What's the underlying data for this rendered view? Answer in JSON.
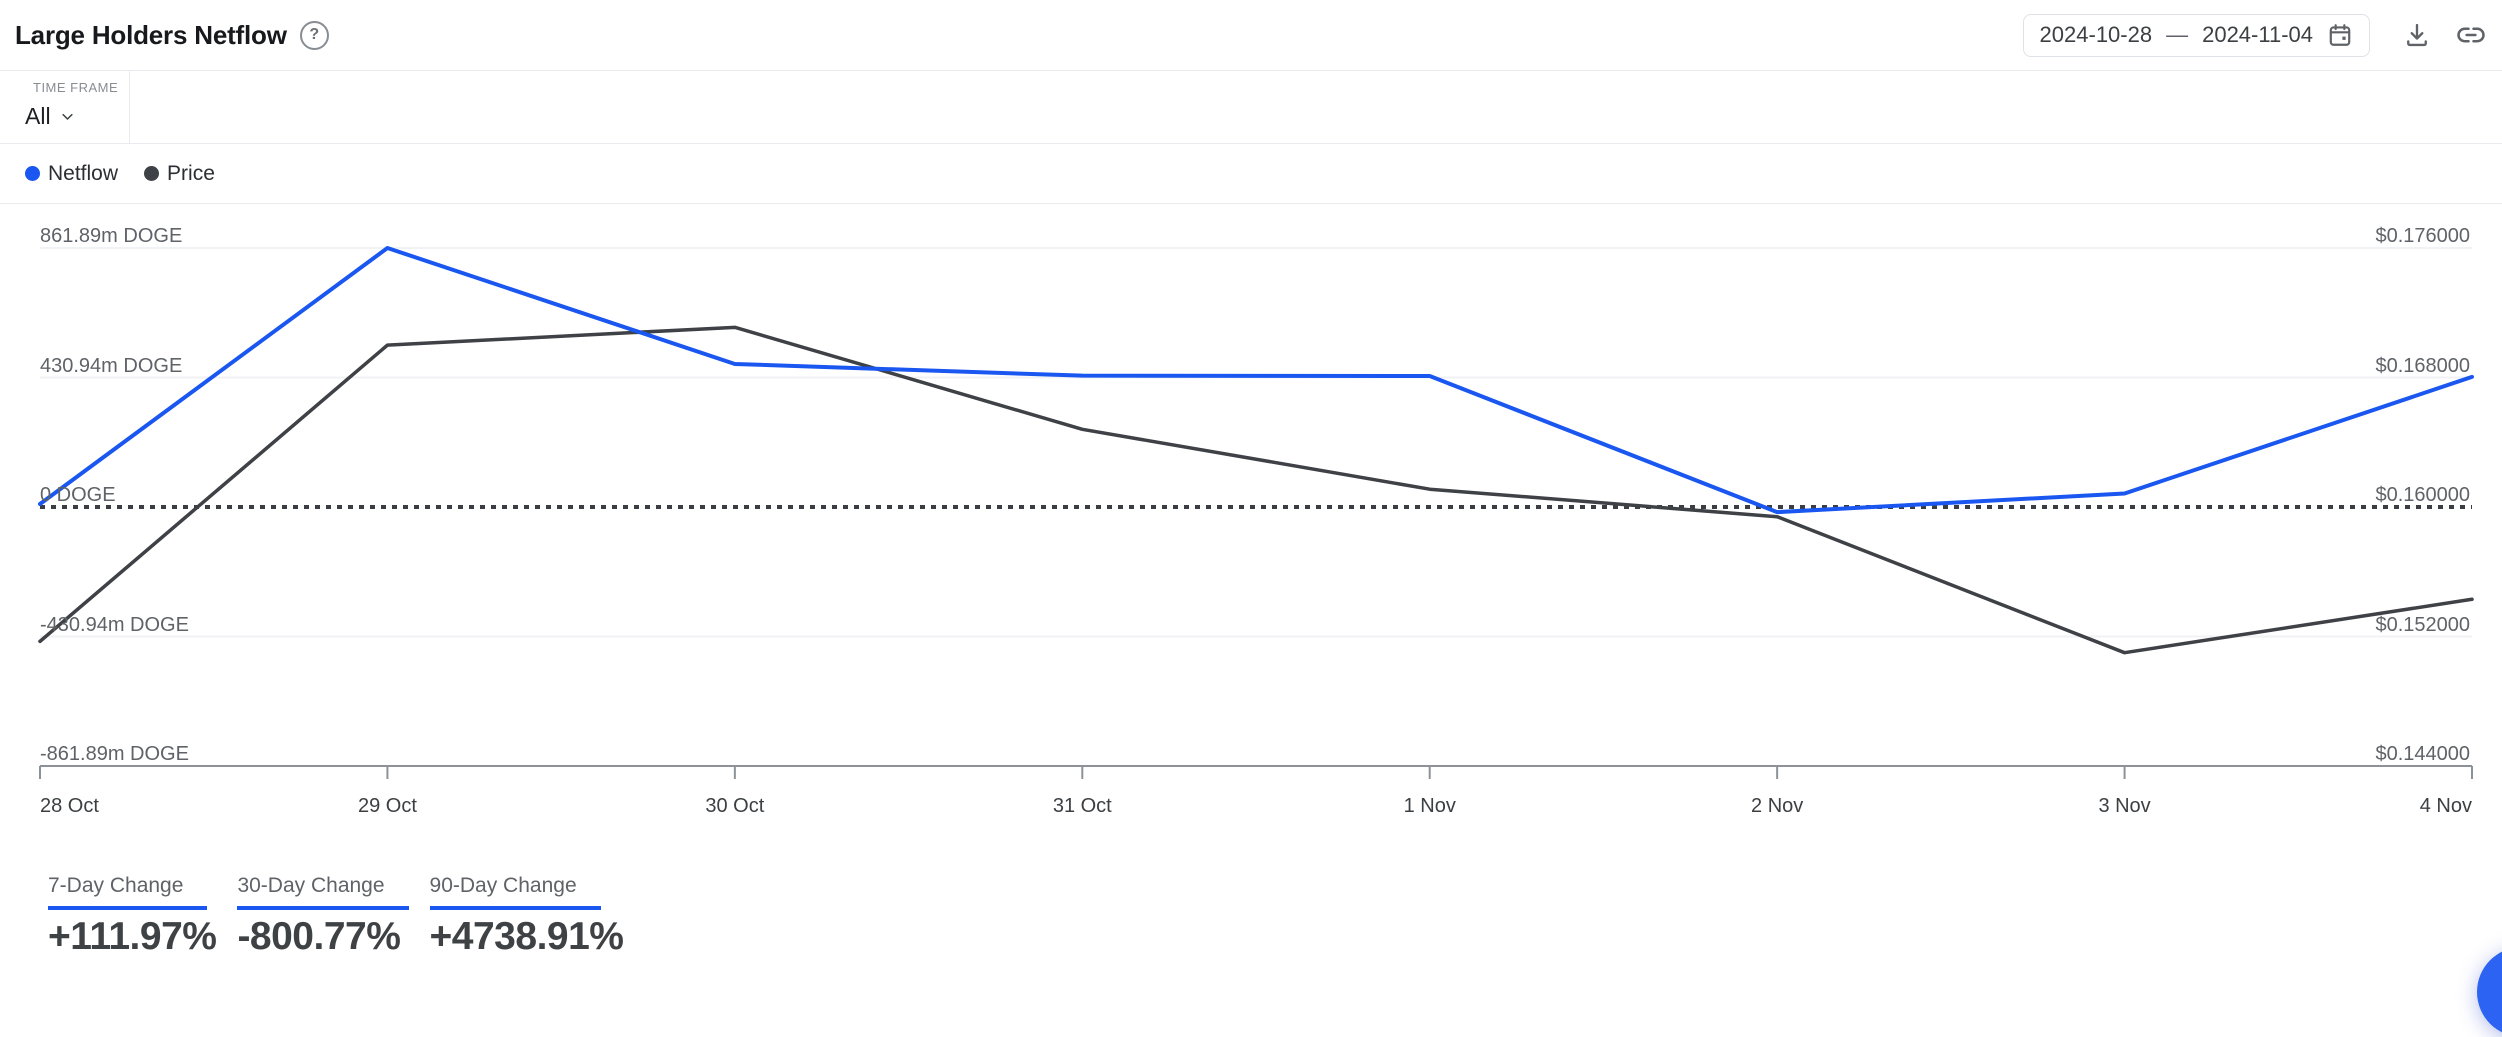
{
  "header": {
    "title": "Large Holders Netflow",
    "help_glyph": "?",
    "date_range": {
      "start": "2024-10-28",
      "separator": "—",
      "end": "2024-11-04"
    }
  },
  "controls": {
    "timeframe_label": "TIME FRAME",
    "timeframe_value": "All"
  },
  "legend": [
    {
      "label": "Netflow",
      "color": "#1a56f0"
    },
    {
      "label": "Price",
      "color": "#3e4145"
    }
  ],
  "stats": [
    {
      "label": "7-Day Change",
      "value": "+111.97%"
    },
    {
      "label": "30-Day Change",
      "value": "-800.77%"
    },
    {
      "label": "90-Day Change",
      "value": "+4738.91%"
    }
  ],
  "colors": {
    "accent_blue": "#1a56f0",
    "price_gray": "#3e4145",
    "gridline": "#f1f2f4",
    "axis": "#8d9298",
    "zero_dash": "#3a3e42"
  },
  "chart_data": {
    "type": "line",
    "x_labels": [
      "28 Oct",
      "29 Oct",
      "30 Oct",
      "31 Oct",
      "1 Nov",
      "2 Nov",
      "3 Nov",
      "4 Nov"
    ],
    "left_axis": {
      "ticks": [
        "861.89m DOGE",
        "430.94m DOGE",
        "0 DOGE",
        "-430.94m DOGE",
        "-861.89m DOGE"
      ],
      "min": -861.89,
      "max": 861.89,
      "unit": "m DOGE"
    },
    "right_axis": {
      "ticks": [
        "$0.176000",
        "$0.168000",
        "$0.160000",
        "$0.152000",
        "$0.144000"
      ],
      "min": 0.144,
      "max": 0.176,
      "unit": "USD"
    },
    "series": [
      {
        "name": "Netflow",
        "axis": "left",
        "color": "#1a56f0",
        "width": 4,
        "values": [
          10,
          861.89,
          476,
          437,
          436,
          -17,
          45,
          433
        ]
      },
      {
        "name": "Price",
        "axis": "right",
        "color": "#3e4145",
        "width": 3.5,
        "values": [
          0.1517,
          0.17,
          0.1711,
          0.1648,
          0.1611,
          0.1594,
          0.151,
          0.1543
        ]
      }
    ],
    "zero_line": {
      "left_value": 0,
      "right_value": 0.16,
      "style": "dotted"
    },
    "grid": true,
    "legend_position": "top-left"
  }
}
